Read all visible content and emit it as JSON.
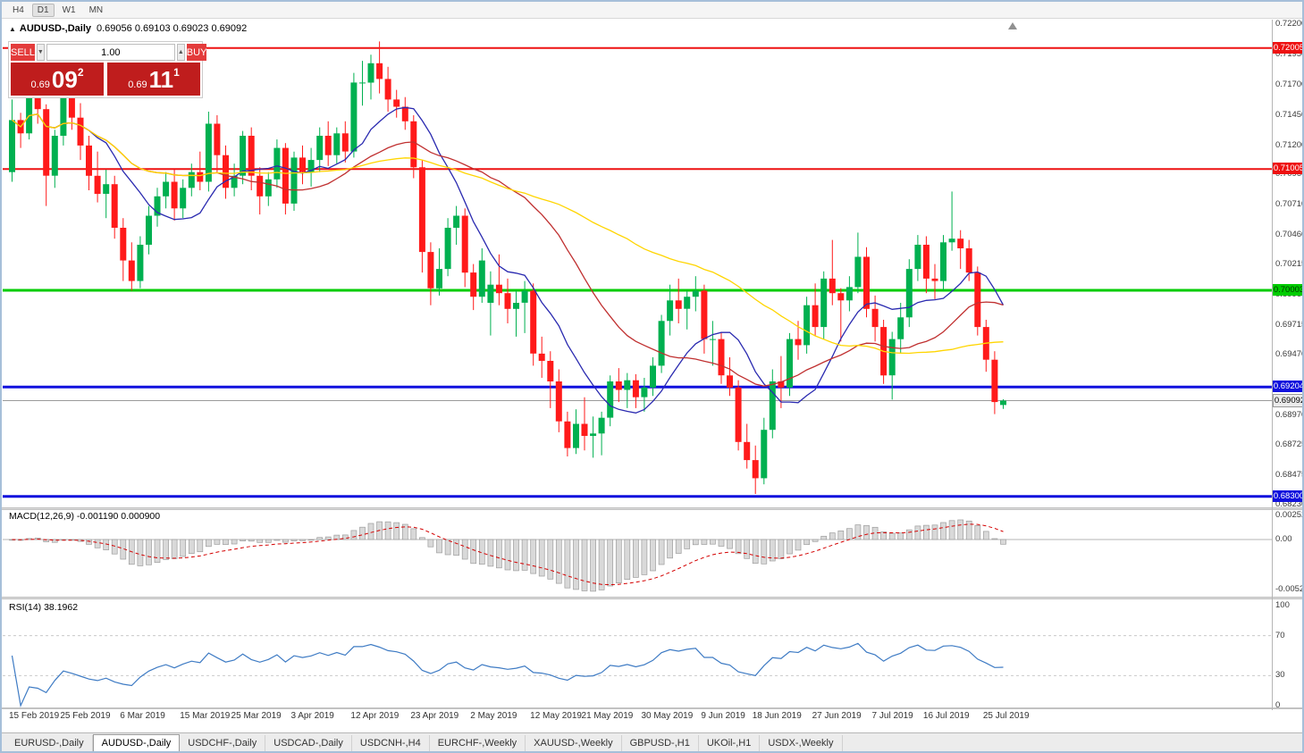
{
  "toolbar": {
    "timeframes": [
      "H4",
      "D1",
      "W1",
      "MN"
    ],
    "active": "D1"
  },
  "chart_header": {
    "marker": "▲",
    "title": "AUDUSD-,Daily",
    "ohlc": "0.69056 0.69103 0.69023 0.69092"
  },
  "trade_panel": {
    "sell_label": "SELL",
    "buy_label": "BUY",
    "volume": "1.00",
    "spin_down": "▼",
    "spin_up": "▲",
    "sell_price": {
      "prefix": "0.69",
      "big": "09",
      "sup": "2"
    },
    "buy_price": {
      "prefix": "0.69",
      "big": "11",
      "sup": "1"
    }
  },
  "price_axis": {
    "ticks": [
      "0.72200",
      "0.71950",
      "0.71700",
      "0.71450",
      "0.71200",
      "0.70960",
      "0.70710",
      "0.70460",
      "0.70215",
      "0.69965",
      "0.69715",
      "0.69470",
      "0.68970",
      "0.68725",
      "0.68475",
      "0.68230"
    ],
    "level_labels": [
      {
        "text": "0.72005",
        "bg": "#ee1111",
        "fg": "#ffffff"
      },
      {
        "text": "0.71005",
        "bg": "#ee1111",
        "fg": "#ffffff"
      },
      {
        "text": "0.70003",
        "bg": "#00cc00",
        "fg": "#003300"
      },
      {
        "text": "0.69204",
        "bg": "#1111dd",
        "fg": "#ffffff"
      },
      {
        "text": "0.68300",
        "bg": "#1111dd",
        "fg": "#ffffff"
      }
    ],
    "current": {
      "text": "0.69092",
      "bg": "#ebebeb",
      "fg": "#000000"
    }
  },
  "indicators": {
    "macd": {
      "label": "MACD(12,26,9) -0.001190 0.000900",
      "ticks": [
        "0.00252",
        "0.00",
        "-0.00523"
      ]
    },
    "rsi": {
      "label": "RSI(14) 38.1962",
      "ticks": [
        "100",
        "70",
        "30",
        "0"
      ],
      "levels": [
        70,
        30
      ]
    }
  },
  "tabs": {
    "items": [
      "EURUSD-,Daily",
      "AUDUSD-,Daily",
      "USDCHF-,Daily",
      "USDCAD-,Daily",
      "USDCNH-,H4",
      "EURCHF-,Weekly",
      "XAUUSD-,Weekly",
      "GBPUSD-,H1",
      "UKOil-,H1",
      "USDX-,Weekly"
    ],
    "active_index": 1
  },
  "colors": {
    "candle_up": "#00b050",
    "candle_down": "#ff1a1a",
    "current_line": "#9a9a9a",
    "macd_fill": "#d9d9d9",
    "macd_stroke": "#9d9d9d",
    "macd_signal": "#d40000",
    "rsi_line": "#3e7bc4",
    "rsi_level": "#c9c9c9"
  },
  "chart_data": {
    "type": "candlestick",
    "symbol": "AUDUSD",
    "timeframe": "Daily",
    "price_axis_range": [
      0.6818,
      0.7224
    ],
    "current_price": 0.69092,
    "price_lines": [
      {
        "price": 0.72005,
        "color": "#ee1111",
        "width": 2
      },
      {
        "price": 0.71005,
        "color": "#ee1111",
        "width": 2
      },
      {
        "price": 0.70003,
        "color": "#00cc00",
        "width": 3
      },
      {
        "price": 0.69204,
        "color": "#1111dd",
        "width": 3
      },
      {
        "price": 0.683,
        "color": "#1111dd",
        "width": 3
      }
    ],
    "moving_averages": [
      {
        "period": 10,
        "color": "#2a2ab0"
      },
      {
        "period": 25,
        "color": "#c03030"
      },
      {
        "period": 50,
        "color": "#ffd500"
      }
    ],
    "macd_params": [
      12,
      26,
      9
    ],
    "rsi_period": 14,
    "x_labels": [
      {
        "i": 0,
        "t": "15 Feb 2019"
      },
      {
        "i": 6,
        "t": "25 Feb 2019"
      },
      {
        "i": 13,
        "t": "6 Mar 2019"
      },
      {
        "i": 20,
        "t": "15 Mar 2019"
      },
      {
        "i": 26,
        "t": "25 Mar 2019"
      },
      {
        "i": 33,
        "t": "3 Apr 2019"
      },
      {
        "i": 40,
        "t": "12 Apr 2019"
      },
      {
        "i": 47,
        "t": "23 Apr 2019"
      },
      {
        "i": 54,
        "t": "2 May 2019"
      },
      {
        "i": 61,
        "t": "12 May 2019"
      },
      {
        "i": 67,
        "t": "21 May 2019"
      },
      {
        "i": 74,
        "t": "30 May 2019"
      },
      {
        "i": 81,
        "t": "9 Jun 2019"
      },
      {
        "i": 87,
        "t": "18 Jun 2019"
      },
      {
        "i": 94,
        "t": "27 Jun 2019"
      },
      {
        "i": 101,
        "t": "7 Jul 2019"
      },
      {
        "i": 107,
        "t": "16 Jul 2019"
      },
      {
        "i": 114,
        "t": "25 Jul 2019"
      }
    ],
    "candles": [
      [
        0.7098,
        0.7158,
        0.709,
        0.7141
      ],
      [
        0.7141,
        0.7147,
        0.7118,
        0.713
      ],
      [
        0.713,
        0.717,
        0.7125,
        0.7163
      ],
      [
        0.7163,
        0.7172,
        0.7138,
        0.715
      ],
      [
        0.715,
        0.7154,
        0.707,
        0.7095
      ],
      [
        0.7095,
        0.7133,
        0.7085,
        0.7128
      ],
      [
        0.7128,
        0.7167,
        0.712,
        0.716
      ],
      [
        0.716,
        0.7165,
        0.7133,
        0.7143
      ],
      [
        0.7143,
        0.7155,
        0.7108,
        0.712
      ],
      [
        0.712,
        0.7128,
        0.7083,
        0.7095
      ],
      [
        0.7095,
        0.7115,
        0.7073,
        0.708
      ],
      [
        0.708,
        0.71,
        0.706,
        0.7088
      ],
      [
        0.7088,
        0.7095,
        0.7043,
        0.7052
      ],
      [
        0.7052,
        0.706,
        0.7008,
        0.7025
      ],
      [
        0.7025,
        0.704,
        0.7,
        0.7008
      ],
      [
        0.7008,
        0.7045,
        0.7002,
        0.7038
      ],
      [
        0.7038,
        0.707,
        0.703,
        0.7062
      ],
      [
        0.7062,
        0.7085,
        0.7053,
        0.7078
      ],
      [
        0.7078,
        0.7098,
        0.7068,
        0.709
      ],
      [
        0.709,
        0.71,
        0.7058,
        0.7068
      ],
      [
        0.7068,
        0.7092,
        0.706,
        0.7085
      ],
      [
        0.7085,
        0.7105,
        0.7078,
        0.7098
      ],
      [
        0.7098,
        0.7115,
        0.7083,
        0.709
      ],
      [
        0.709,
        0.7148,
        0.7082,
        0.7138
      ],
      [
        0.7138,
        0.7145,
        0.7098,
        0.7112
      ],
      [
        0.7112,
        0.712,
        0.7076,
        0.7085
      ],
      [
        0.7085,
        0.7105,
        0.7078,
        0.7095
      ],
      [
        0.7095,
        0.7132,
        0.7088,
        0.7128
      ],
      [
        0.7128,
        0.7135,
        0.7083,
        0.7095
      ],
      [
        0.7095,
        0.7102,
        0.7063,
        0.7078
      ],
      [
        0.7078,
        0.7098,
        0.707,
        0.7092
      ],
      [
        0.7092,
        0.7125,
        0.7085,
        0.7118
      ],
      [
        0.7118,
        0.7122,
        0.7063,
        0.7072
      ],
      [
        0.7072,
        0.7115,
        0.7066,
        0.711
      ],
      [
        0.711,
        0.712,
        0.7088,
        0.7098
      ],
      [
        0.7098,
        0.7118,
        0.7086,
        0.7108
      ],
      [
        0.7108,
        0.7135,
        0.7098,
        0.7128
      ],
      [
        0.7128,
        0.714,
        0.7103,
        0.7112
      ],
      [
        0.7112,
        0.7135,
        0.7105,
        0.713
      ],
      [
        0.713,
        0.714,
        0.7106,
        0.7115
      ],
      [
        0.7115,
        0.718,
        0.711,
        0.7172
      ],
      [
        0.7172,
        0.719,
        0.7153,
        0.7172
      ],
      [
        0.7172,
        0.7195,
        0.7158,
        0.7188
      ],
      [
        0.7188,
        0.7206,
        0.7163,
        0.7175
      ],
      [
        0.7175,
        0.7185,
        0.7148,
        0.7158
      ],
      [
        0.7158,
        0.7166,
        0.7143,
        0.7152
      ],
      [
        0.7152,
        0.716,
        0.7133,
        0.714
      ],
      [
        0.714,
        0.7145,
        0.7093,
        0.7102
      ],
      [
        0.7102,
        0.7108,
        0.7015,
        0.7032
      ],
      [
        0.7032,
        0.704,
        0.6988,
        0.7002
      ],
      [
        0.7002,
        0.7035,
        0.6996,
        0.7018
      ],
      [
        0.7018,
        0.706,
        0.7012,
        0.7052
      ],
      [
        0.7052,
        0.707,
        0.7038,
        0.7062
      ],
      [
        0.7062,
        0.7068,
        0.7003,
        0.7015
      ],
      [
        0.7015,
        0.7022,
        0.6984,
        0.6995
      ],
      [
        0.6995,
        0.7035,
        0.699,
        0.7025
      ],
      [
        0.699,
        0.7016,
        0.6963,
        0.7005
      ],
      [
        0.7005,
        0.703,
        0.6988,
        0.6998
      ],
      [
        0.6998,
        0.701,
        0.6973,
        0.6985
      ],
      [
        0.6985,
        0.7,
        0.6962,
        0.699
      ],
      [
        0.699,
        0.7008,
        0.6965,
        0.7
      ],
      [
        0.7,
        0.7006,
        0.6938,
        0.6948
      ],
      [
        0.6948,
        0.6962,
        0.6928,
        0.6942
      ],
      [
        0.6942,
        0.695,
        0.6903,
        0.6925
      ],
      [
        0.6925,
        0.6935,
        0.6883,
        0.6892
      ],
      [
        0.6892,
        0.69,
        0.6863,
        0.687
      ],
      [
        0.687,
        0.6902,
        0.6865,
        0.689
      ],
      [
        0.689,
        0.6912,
        0.6868,
        0.688
      ],
      [
        0.688,
        0.6896,
        0.6862,
        0.6882
      ],
      [
        0.6882,
        0.69,
        0.6864,
        0.6895
      ],
      [
        0.6895,
        0.693,
        0.6888,
        0.6925
      ],
      [
        0.6925,
        0.6936,
        0.6908,
        0.6918
      ],
      [
        0.6918,
        0.6932,
        0.6903,
        0.6926
      ],
      [
        0.6926,
        0.6931,
        0.6903,
        0.6912
      ],
      [
        0.6912,
        0.6928,
        0.69,
        0.692
      ],
      [
        0.692,
        0.6945,
        0.6913,
        0.6938
      ],
      [
        0.6938,
        0.698,
        0.6932,
        0.6975
      ],
      [
        0.6975,
        0.7005,
        0.6963,
        0.6992
      ],
      [
        0.6992,
        0.701,
        0.6973,
        0.6985
      ],
      [
        0.6985,
        0.7,
        0.6968,
        0.6995
      ],
      [
        0.6995,
        0.7012,
        0.6983,
        0.7
      ],
      [
        0.7,
        0.7005,
        0.6948,
        0.696
      ],
      [
        0.696,
        0.6975,
        0.6938,
        0.696
      ],
      [
        0.696,
        0.6966,
        0.6923,
        0.693
      ],
      [
        0.693,
        0.6945,
        0.6913,
        0.692
      ],
      [
        0.692,
        0.6926,
        0.6868,
        0.6875
      ],
      [
        0.6875,
        0.689,
        0.6853,
        0.686
      ],
      [
        0.686,
        0.6872,
        0.6832,
        0.6845
      ],
      [
        0.6845,
        0.6895,
        0.684,
        0.6885
      ],
      [
        0.6885,
        0.6935,
        0.6878,
        0.6925
      ],
      [
        0.6925,
        0.6946,
        0.6903,
        0.692
      ],
      [
        0.692,
        0.6965,
        0.6913,
        0.696
      ],
      [
        0.696,
        0.6975,
        0.6943,
        0.6955
      ],
      [
        0.6955,
        0.6995,
        0.6948,
        0.6988
      ],
      [
        0.6988,
        0.7006,
        0.6963,
        0.697
      ],
      [
        0.697,
        0.7016,
        0.696,
        0.701
      ],
      [
        0.701,
        0.7042,
        0.6988,
        0.6998
      ],
      [
        0.6998,
        0.7002,
        0.6958,
        0.6992
      ],
      [
        0.6992,
        0.7012,
        0.6983,
        0.7003
      ],
      [
        0.7003,
        0.7048,
        0.6998,
        0.7028
      ],
      [
        0.7028,
        0.7036,
        0.6978,
        0.6985
      ],
      [
        0.6985,
        0.6996,
        0.6958,
        0.697
      ],
      [
        0.697,
        0.6976,
        0.6923,
        0.693
      ],
      [
        0.693,
        0.6966,
        0.691,
        0.696
      ],
      [
        0.696,
        0.699,
        0.6948,
        0.6978
      ],
      [
        0.6978,
        0.7026,
        0.697,
        0.7018
      ],
      [
        0.7018,
        0.7046,
        0.7008,
        0.7038
      ],
      [
        0.7038,
        0.7045,
        0.6998,
        0.701
      ],
      [
        0.701,
        0.7022,
        0.6993,
        0.7008
      ],
      [
        0.7008,
        0.7046,
        0.7,
        0.704
      ],
      [
        0.704,
        0.7082,
        0.7033,
        0.7043
      ],
      [
        0.7043,
        0.705,
        0.7018,
        0.7035
      ],
      [
        0.7035,
        0.7042,
        0.7008,
        0.7015
      ],
      [
        0.7015,
        0.702,
        0.6963,
        0.697
      ],
      [
        0.697,
        0.6976,
        0.6933,
        0.6943
      ],
      [
        0.6943,
        0.695,
        0.6898,
        0.6908
      ],
      [
        0.69056,
        0.69103,
        0.69023,
        0.69092
      ]
    ]
  }
}
